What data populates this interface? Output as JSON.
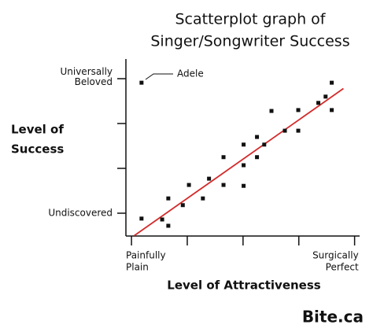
{
  "chart_data": {
    "type": "scatter",
    "title": [
      "Scatterplot graph of",
      "Singer/Songwriter Success"
    ],
    "y_label": [
      "Level of",
      "Success"
    ],
    "x_label": "Level of Attractiveness",
    "xlim": [
      -0.1,
      4.1
    ],
    "ylim": [
      0.5,
      4.5
    ],
    "xticks": [
      {
        "value": 0,
        "label": [
          "Painfully",
          "Plain"
        ]
      },
      {
        "value": 1,
        "label": null
      },
      {
        "value": 2,
        "label": null
      },
      {
        "value": 3,
        "label": null
      },
      {
        "value": 4,
        "label": [
          "Surgically",
          "Perfect"
        ]
      }
    ],
    "yticks": [
      {
        "value": 1,
        "label": [
          "Undiscovered"
        ]
      },
      {
        "value": 2,
        "label": null
      },
      {
        "value": 3,
        "label": null
      },
      {
        "value": 4,
        "label": [
          "Universally",
          "Beloved"
        ]
      }
    ],
    "series": [
      {
        "color": "#111111",
        "x": [
          0.18,
          0.18,
          0.55,
          0.66,
          0.66,
          0.92,
          1.03,
          1.28,
          1.39,
          1.65,
          1.65,
          2.01,
          2.01,
          2.01,
          2.25,
          2.25,
          2.38,
          2.51,
          2.75,
          2.99,
          2.99,
          3.35,
          3.48,
          3.59,
          3.59
        ],
        "values": [
          3.91,
          0.88,
          0.86,
          0.72,
          1.33,
          1.18,
          1.63,
          1.33,
          1.77,
          1.63,
          2.25,
          1.61,
          2.07,
          2.53,
          2.25,
          2.7,
          2.53,
          3.28,
          2.84,
          2.84,
          3.3,
          3.46,
          3.6,
          3.91,
          3.3
        ]
      }
    ],
    "trend_line": {
      "color": "#d42a2a",
      "x": [
        0.05,
        3.8
      ],
      "values": [
        0.5,
        3.78
      ]
    },
    "annotation": "Adele",
    "brand": "Bite.ca"
  }
}
